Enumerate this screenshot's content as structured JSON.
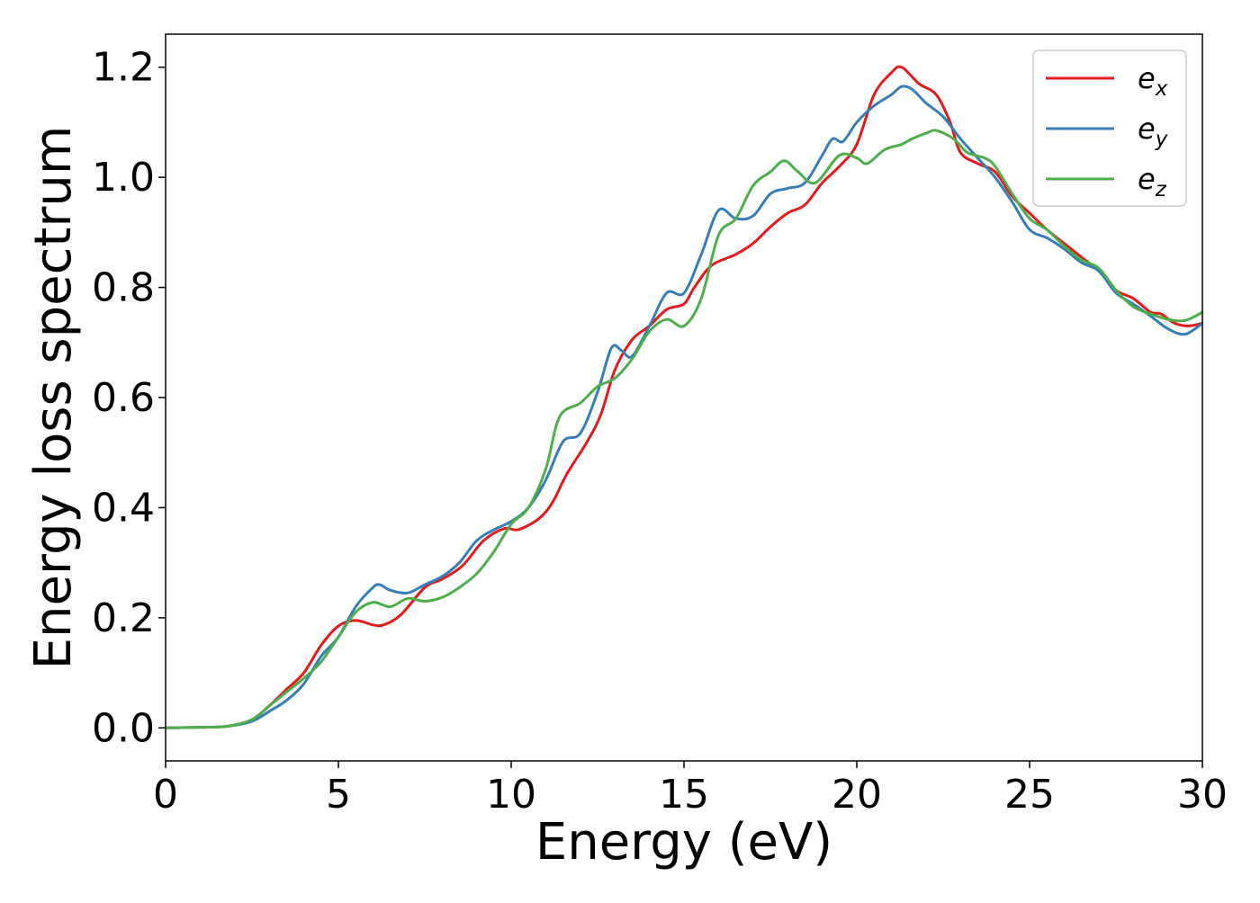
{
  "chart_data": {
    "type": "line",
    "xlabel": "Energy (eV)",
    "ylabel": "Energy loss spectrum",
    "xlim": [
      0,
      30
    ],
    "ylim": [
      -0.06,
      1.26
    ],
    "xticks": [
      0,
      5,
      10,
      15,
      20,
      25,
      30
    ],
    "yticks": [
      0.0,
      0.2,
      0.4,
      0.6,
      0.8,
      1.0,
      1.2
    ],
    "xtick_labels": [
      "0",
      "5",
      "10",
      "15",
      "20",
      "25",
      "30"
    ],
    "ytick_labels": [
      "0.0",
      "0.2",
      "0.4",
      "0.6",
      "0.8",
      "1.0",
      "1.2"
    ],
    "grid": false,
    "legend_position": "top-right",
    "series": [
      {
        "name": "e_x",
        "legend_base": "e",
        "legend_sub": "x",
        "color": "#e41a1c",
        "points": [
          [
            0,
            0.0
          ],
          [
            1,
            0.001
          ],
          [
            1.8,
            0.003
          ],
          [
            2.5,
            0.015
          ],
          [
            3.0,
            0.04
          ],
          [
            3.5,
            0.07
          ],
          [
            4.0,
            0.1
          ],
          [
            4.5,
            0.15
          ],
          [
            5.0,
            0.185
          ],
          [
            5.5,
            0.195
          ],
          [
            6.0,
            0.187
          ],
          [
            6.3,
            0.187
          ],
          [
            6.8,
            0.205
          ],
          [
            7.5,
            0.255
          ],
          [
            8.0,
            0.27
          ],
          [
            8.6,
            0.295
          ],
          [
            9.2,
            0.34
          ],
          [
            9.8,
            0.362
          ],
          [
            10.2,
            0.36
          ],
          [
            10.8,
            0.38
          ],
          [
            11.2,
            0.41
          ],
          [
            11.6,
            0.46
          ],
          [
            12.2,
            0.52
          ],
          [
            12.6,
            0.57
          ],
          [
            13.0,
            0.65
          ],
          [
            13.5,
            0.705
          ],
          [
            14.0,
            0.73
          ],
          [
            14.5,
            0.76
          ],
          [
            15.0,
            0.77
          ],
          [
            15.3,
            0.8
          ],
          [
            15.8,
            0.84
          ],
          [
            16.5,
            0.86
          ],
          [
            17.0,
            0.88
          ],
          [
            17.5,
            0.91
          ],
          [
            18.0,
            0.935
          ],
          [
            18.5,
            0.95
          ],
          [
            19.0,
            0.99
          ],
          [
            19.5,
            1.02
          ],
          [
            20.0,
            1.06
          ],
          [
            20.5,
            1.15
          ],
          [
            21.0,
            1.19
          ],
          [
            21.3,
            1.2
          ],
          [
            21.8,
            1.17
          ],
          [
            22.3,
            1.15
          ],
          [
            22.7,
            1.1
          ],
          [
            23.0,
            1.045
          ],
          [
            23.5,
            1.025
          ],
          [
            24.0,
            1.01
          ],
          [
            24.5,
            0.965
          ],
          [
            25.0,
            0.935
          ],
          [
            25.5,
            0.905
          ],
          [
            26.0,
            0.88
          ],
          [
            26.5,
            0.855
          ],
          [
            27.0,
            0.83
          ],
          [
            27.5,
            0.795
          ],
          [
            28.0,
            0.78
          ],
          [
            28.5,
            0.755
          ],
          [
            28.8,
            0.752
          ],
          [
            29.2,
            0.735
          ],
          [
            29.6,
            0.73
          ],
          [
            30.0,
            0.735
          ]
        ]
      },
      {
        "name": "e_y",
        "legend_base": "e",
        "legend_sub": "y",
        "color": "#377eb8",
        "points": [
          [
            0,
            0.0
          ],
          [
            1,
            0.001
          ],
          [
            1.8,
            0.003
          ],
          [
            2.5,
            0.012
          ],
          [
            3.0,
            0.03
          ],
          [
            3.5,
            0.05
          ],
          [
            4.0,
            0.08
          ],
          [
            4.5,
            0.13
          ],
          [
            5.0,
            0.165
          ],
          [
            5.5,
            0.22
          ],
          [
            6.0,
            0.255
          ],
          [
            6.2,
            0.26
          ],
          [
            6.5,
            0.25
          ],
          [
            7.0,
            0.245
          ],
          [
            7.5,
            0.26
          ],
          [
            8.0,
            0.275
          ],
          [
            8.5,
            0.3
          ],
          [
            9.0,
            0.34
          ],
          [
            9.5,
            0.36
          ],
          [
            10.0,
            0.375
          ],
          [
            10.5,
            0.4
          ],
          [
            11.0,
            0.45
          ],
          [
            11.5,
            0.52
          ],
          [
            12.0,
            0.535
          ],
          [
            12.5,
            0.61
          ],
          [
            12.9,
            0.69
          ],
          [
            13.2,
            0.685
          ],
          [
            13.5,
            0.675
          ],
          [
            14.0,
            0.73
          ],
          [
            14.5,
            0.79
          ],
          [
            15.0,
            0.79
          ],
          [
            15.5,
            0.86
          ],
          [
            16.0,
            0.94
          ],
          [
            16.5,
            0.925
          ],
          [
            17.0,
            0.93
          ],
          [
            17.5,
            0.97
          ],
          [
            18.0,
            0.98
          ],
          [
            18.5,
            0.99
          ],
          [
            19.0,
            1.04
          ],
          [
            19.3,
            1.07
          ],
          [
            19.6,
            1.065
          ],
          [
            20.0,
            1.1
          ],
          [
            20.5,
            1.13
          ],
          [
            21.0,
            1.15
          ],
          [
            21.3,
            1.165
          ],
          [
            21.6,
            1.16
          ],
          [
            22.0,
            1.135
          ],
          [
            22.5,
            1.11
          ],
          [
            23.0,
            1.07
          ],
          [
            23.5,
            1.035
          ],
          [
            24.0,
            1.0
          ],
          [
            24.5,
            0.955
          ],
          [
            25.0,
            0.905
          ],
          [
            25.5,
            0.89
          ],
          [
            26.0,
            0.87
          ],
          [
            26.5,
            0.845
          ],
          [
            27.0,
            0.83
          ],
          [
            27.5,
            0.79
          ],
          [
            28.0,
            0.77
          ],
          [
            28.5,
            0.748
          ],
          [
            29.0,
            0.725
          ],
          [
            29.5,
            0.715
          ],
          [
            30.0,
            0.735
          ]
        ]
      },
      {
        "name": "e_z",
        "legend_base": "e",
        "legend_sub": "z",
        "color": "#4daf4a",
        "points": [
          [
            0,
            0.0
          ],
          [
            1,
            0.001
          ],
          [
            1.8,
            0.003
          ],
          [
            2.5,
            0.015
          ],
          [
            3.0,
            0.04
          ],
          [
            3.5,
            0.065
          ],
          [
            4.0,
            0.09
          ],
          [
            4.5,
            0.12
          ],
          [
            5.0,
            0.165
          ],
          [
            5.5,
            0.21
          ],
          [
            6.0,
            0.228
          ],
          [
            6.5,
            0.22
          ],
          [
            7.0,
            0.235
          ],
          [
            7.5,
            0.23
          ],
          [
            8.0,
            0.237
          ],
          [
            8.5,
            0.255
          ],
          [
            9.0,
            0.28
          ],
          [
            9.5,
            0.32
          ],
          [
            10.0,
            0.37
          ],
          [
            10.5,
            0.4
          ],
          [
            11.0,
            0.47
          ],
          [
            11.4,
            0.565
          ],
          [
            12.0,
            0.59
          ],
          [
            12.5,
            0.62
          ],
          [
            13.0,
            0.635
          ],
          [
            13.5,
            0.67
          ],
          [
            14.0,
            0.72
          ],
          [
            14.5,
            0.742
          ],
          [
            15.0,
            0.73
          ],
          [
            15.5,
            0.78
          ],
          [
            16.0,
            0.895
          ],
          [
            16.5,
            0.925
          ],
          [
            17.0,
            0.985
          ],
          [
            17.5,
            1.01
          ],
          [
            17.9,
            1.03
          ],
          [
            18.3,
            1.01
          ],
          [
            18.8,
            0.99
          ],
          [
            19.5,
            1.04
          ],
          [
            20.0,
            1.035
          ],
          [
            20.3,
            1.025
          ],
          [
            20.8,
            1.05
          ],
          [
            21.3,
            1.06
          ],
          [
            21.6,
            1.07
          ],
          [
            22.0,
            1.08
          ],
          [
            22.3,
            1.085
          ],
          [
            22.8,
            1.07
          ],
          [
            23.2,
            1.045
          ],
          [
            23.7,
            1.035
          ],
          [
            24.0,
            1.02
          ],
          [
            24.5,
            0.97
          ],
          [
            25.0,
            0.925
          ],
          [
            25.5,
            0.905
          ],
          [
            26.0,
            0.875
          ],
          [
            26.5,
            0.85
          ],
          [
            27.0,
            0.835
          ],
          [
            27.5,
            0.795
          ],
          [
            28.0,
            0.765
          ],
          [
            28.5,
            0.752
          ],
          [
            29.0,
            0.742
          ],
          [
            29.5,
            0.74
          ],
          [
            30.0,
            0.755
          ]
        ]
      }
    ]
  }
}
